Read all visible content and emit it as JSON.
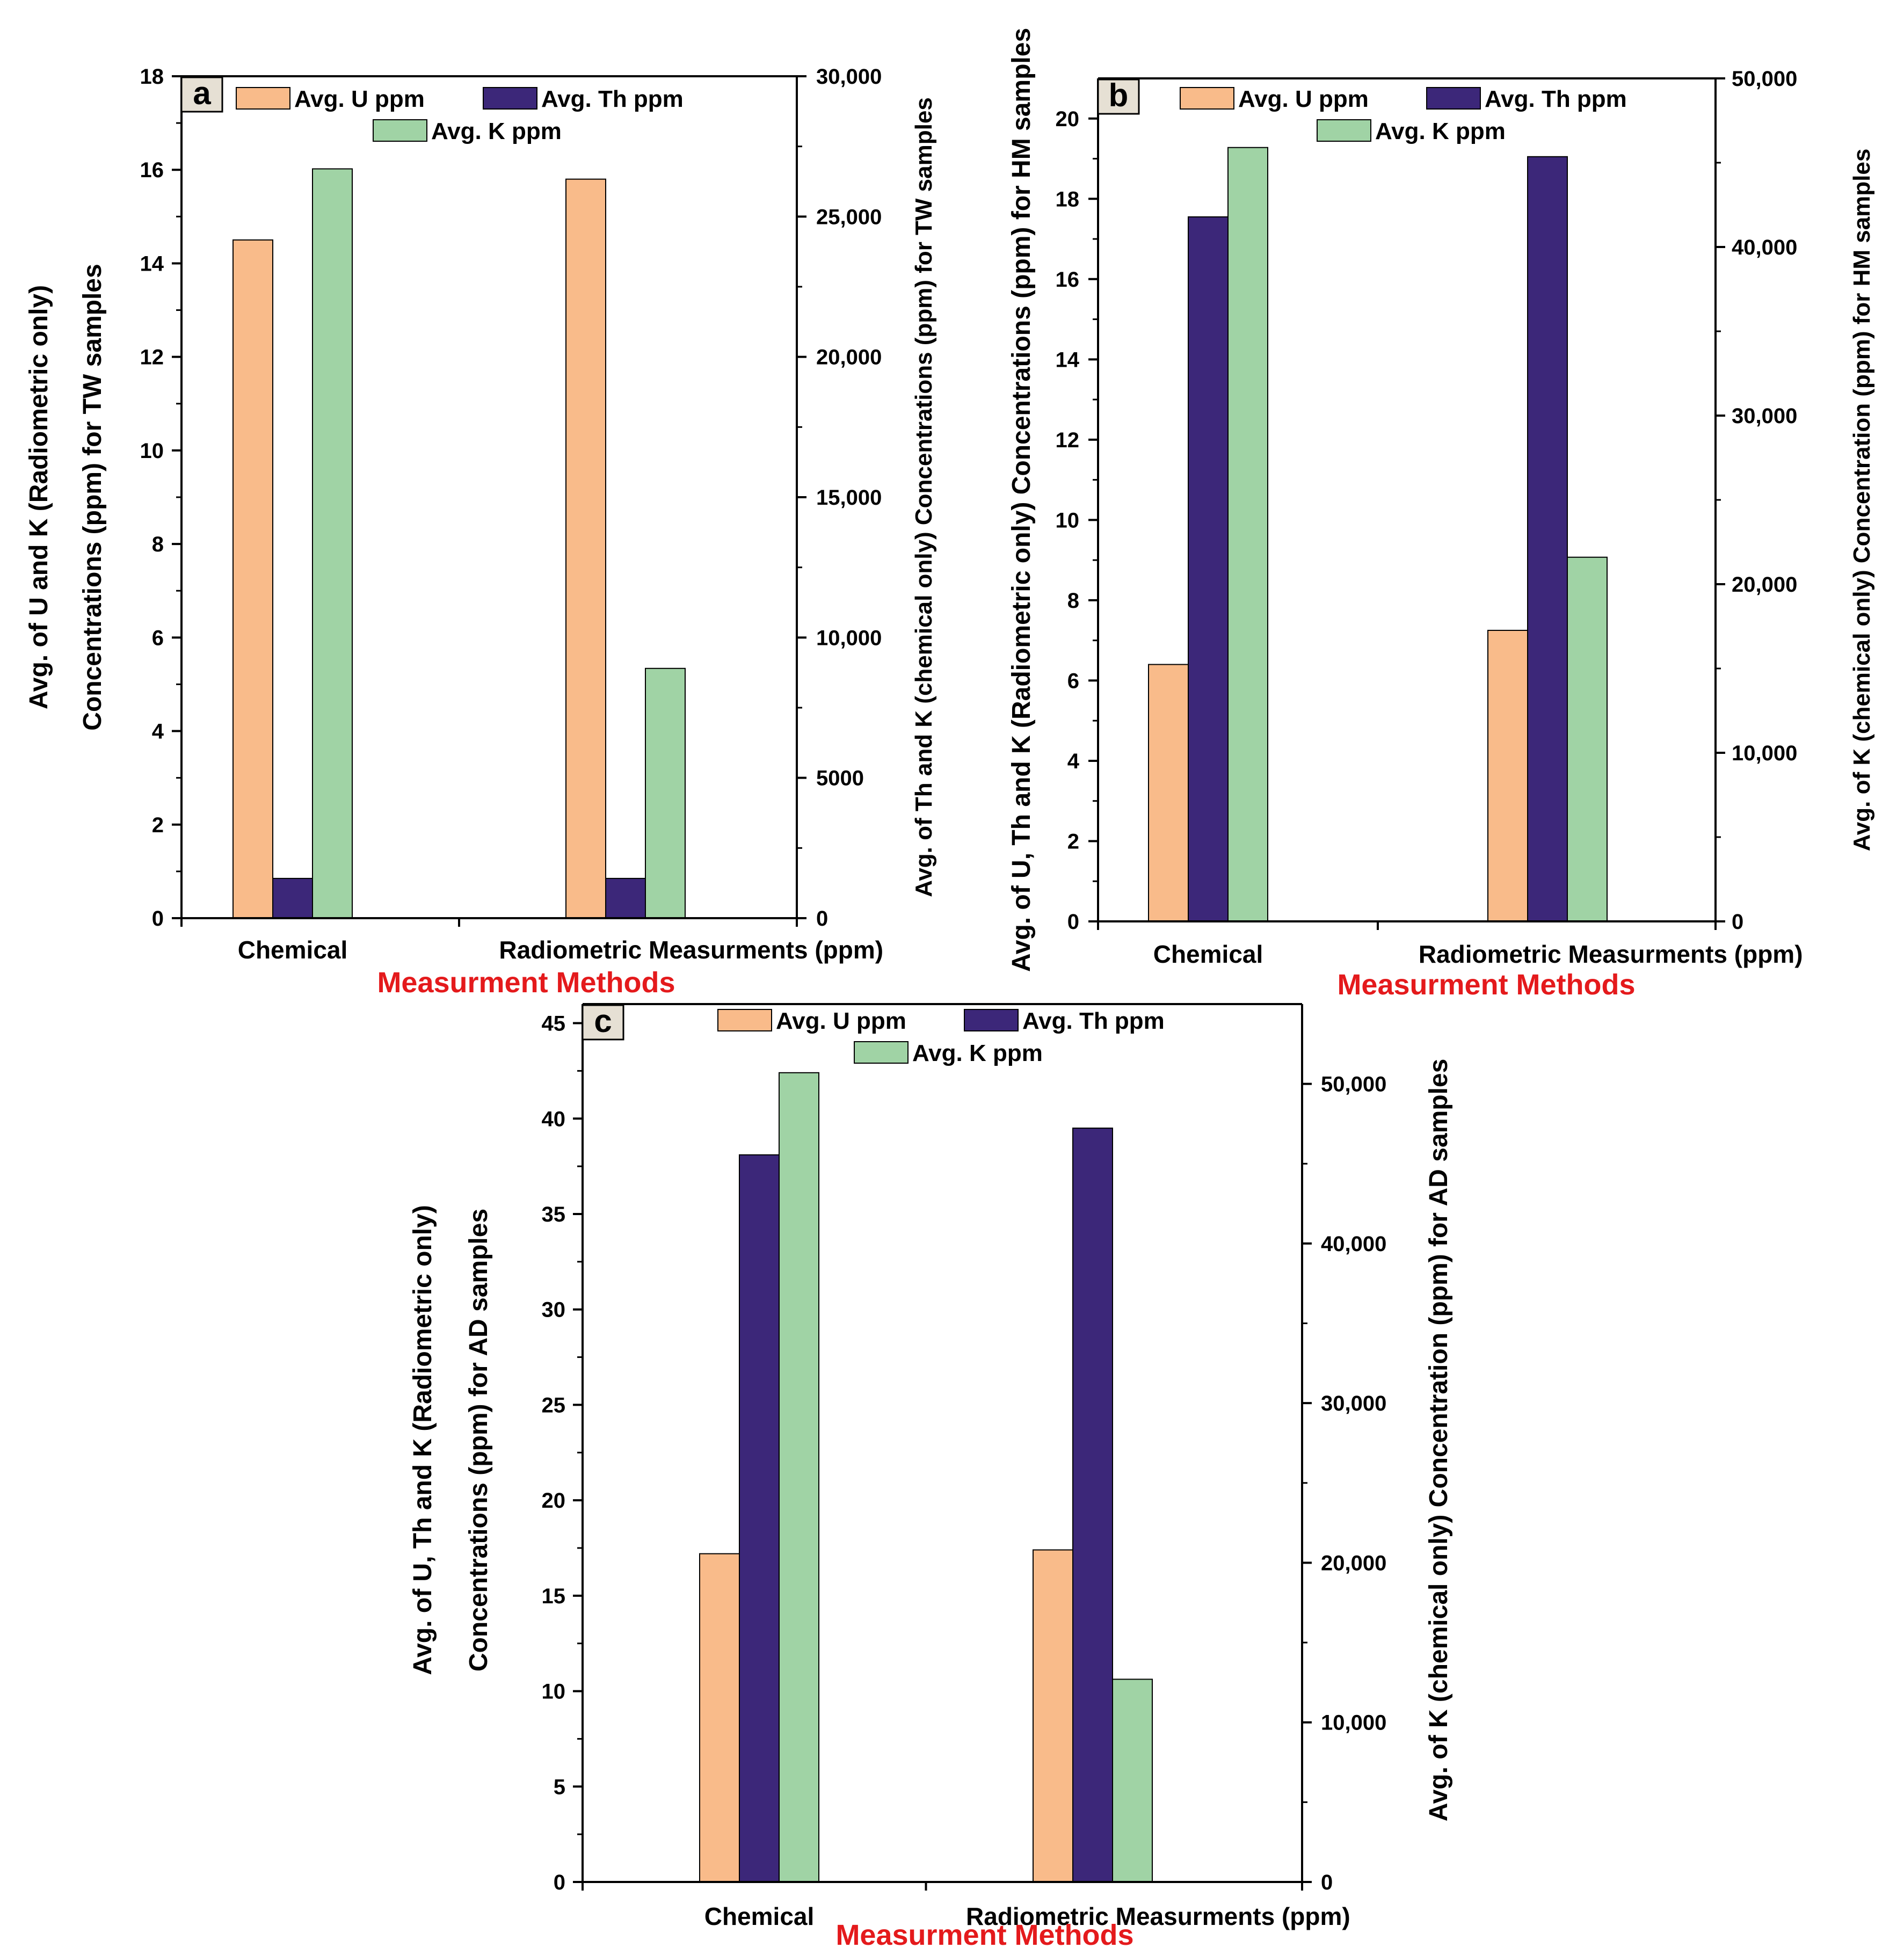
{
  "colors": {
    "u": "#f9bb8a",
    "th": "#3c2779",
    "k": "#a0d3a5",
    "method_title": "#e41a1c"
  },
  "chart_data": [
    {
      "type": "bar",
      "panel": "a",
      "categories": [
        "Chemical",
        "Radiometric Measurments (ppm)"
      ],
      "series": [
        {
          "name": "Avg. U ppm",
          "axis": "left",
          "values": [
            14.5,
            15.8
          ]
        },
        {
          "name": "Avg. Th ppm",
          "axis": "left",
          "values": [
            0.85,
            0.85
          ]
        },
        {
          "name": "Avg. K ppm",
          "axis": "right",
          "values": [
            26700,
            8900
          ]
        }
      ],
      "xlabel": "Measurment Methods",
      "ylabel_left": [
        "Avg. of U and K (Radiometric only)",
        "Concentrations (ppm) for TW samples"
      ],
      "ylabel_right": [
        "Avg. of Th and K (chemical only) Concentrations (ppm) for TW samples"
      ],
      "ylim_left": [
        0,
        18
      ],
      "ylim_right": [
        0,
        30000
      ],
      "yticks_left": [
        "0",
        "2",
        "4",
        "6",
        "8",
        "10",
        "12",
        "14",
        "16",
        "18"
      ],
      "yticks_right": [
        "0",
        "5000",
        "10,000",
        "15,000",
        "20,000",
        "25,000",
        "30,000"
      ],
      "legend": "top"
    },
    {
      "type": "bar",
      "panel": "b",
      "categories": [
        "Chemical",
        "Radiometric Measurments (ppm)"
      ],
      "series": [
        {
          "name": "Avg. U ppm",
          "axis": "left",
          "values": [
            6.4,
            7.25
          ]
        },
        {
          "name": "Avg. Th ppm",
          "axis": "left",
          "values": [
            17.55,
            19.05
          ]
        },
        {
          "name": "Avg. K ppm",
          "axis": "right",
          "values": [
            45900,
            21600
          ]
        }
      ],
      "xlabel": "Measurment Methods",
      "ylabel_left": [
        "Avg. of U, Th and K (Radiometric only) Concentrations (ppm) for HM samples"
      ],
      "ylabel_right": [
        "Avg. of  K (chemical only) Concentration (ppm) for HM samples"
      ],
      "ylim_left": [
        0,
        21
      ],
      "ylim_right": [
        0,
        50000
      ],
      "yticks_left": [
        "0",
        "2",
        "4",
        "6",
        "8",
        "10",
        "12",
        "14",
        "16",
        "18",
        "20"
      ],
      "yticks_right": [
        "0",
        "10,000",
        "20,000",
        "30,000",
        "40,000",
        "50,000"
      ],
      "legend": "top"
    },
    {
      "type": "bar",
      "panel": "c",
      "categories": [
        "Chemical",
        "Radiometric Measurments (ppm)"
      ],
      "series": [
        {
          "name": "Avg. U ppm",
          "axis": "left",
          "values": [
            17.2,
            17.4
          ]
        },
        {
          "name": "Avg. Th ppm",
          "axis": "left",
          "values": [
            38.1,
            39.5
          ]
        },
        {
          "name": "Avg. K ppm",
          "axis": "right",
          "values": [
            50700,
            12700
          ]
        }
      ],
      "xlabel": "Measurment Methods",
      "ylabel_left": [
        "Avg. of U, Th and K (Radiometric only)",
        "Concentrations (ppm) for AD samples"
      ],
      "ylabel_right": [
        "Avg. of  K (chemical only) Concentration (ppm) for AD samples"
      ],
      "ylim_left": [
        0,
        46
      ],
      "ylim_right": [
        0,
        55000
      ],
      "yticks_left": [
        "0",
        "5",
        "10",
        "15",
        "20",
        "25",
        "30",
        "35",
        "40",
        "45"
      ],
      "yticks_right": [
        "0",
        "10,000",
        "20,000",
        "30,000",
        "40,000",
        "50,000"
      ],
      "legend": "top"
    }
  ]
}
